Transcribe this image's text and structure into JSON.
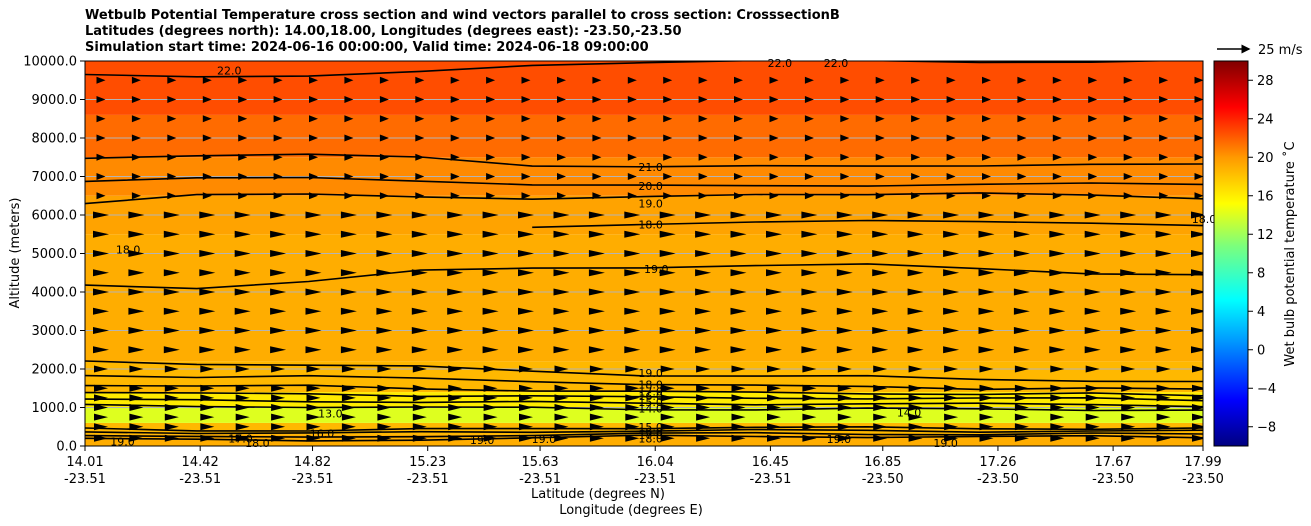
{
  "chart_data": {
    "type": "contour",
    "title_lines": [
      "Wetbulb Potential Temperature cross section and wind vectors parallel to cross section: CrosssectionB",
      "Latitudes (degrees north): 14.00,18.00, Longitudes (degrees east): -23.50,-23.50",
      "Simulation start time: 2024-06-16 00:00:00, Valid time: 2024-06-18 09:00:00"
    ],
    "ylabel": "Altitude (meters)",
    "xlabel_lat": "Latitude (degrees N)",
    "xlabel_lon": "Longitude (degrees E)",
    "ylim": [
      0,
      10000
    ],
    "yticks": [
      "0.0",
      "1000.0",
      "2000.0",
      "3000.0",
      "4000.0",
      "5000.0",
      "6000.0",
      "7000.0",
      "8000.0",
      "9000.0",
      "10000.0"
    ],
    "xticks": [
      {
        "lat": "14.01",
        "lon": "-23.51"
      },
      {
        "lat": "14.42",
        "lon": "-23.51"
      },
      {
        "lat": "14.82",
        "lon": "-23.51"
      },
      {
        "lat": "15.23",
        "lon": "-23.51"
      },
      {
        "lat": "15.63",
        "lon": "-23.51"
      },
      {
        "lat": "16.04",
        "lon": "-23.51"
      },
      {
        "lat": "16.45",
        "lon": "-23.51"
      },
      {
        "lat": "16.85",
        "lon": "-23.50"
      },
      {
        "lat": "17.26",
        "lon": "-23.50"
      },
      {
        "lat": "17.67",
        "lon": "-23.50"
      },
      {
        "lat": "17.99",
        "lon": "-23.50"
      }
    ],
    "xlim": [
      14.01,
      17.99
    ],
    "colorbar": {
      "label": "Wet bulb potential temperature ˚C",
      "range": [
        -10,
        30
      ],
      "ticks": [
        "28",
        "24",
        "20",
        "16",
        "12",
        "8",
        "4",
        "0",
        "−4",
        "−8"
      ],
      "tick_values": [
        28,
        24,
        20,
        16,
        12,
        8,
        4,
        0,
        -4,
        -8
      ],
      "colors": {
        "min": "#000080",
        "cool": "#0055ff",
        "mid": "#00ffff",
        "green": "#7cff7c",
        "yellow": "#ffff00",
        "orange": "#ff9900",
        "red": "#ff0000",
        "max": "#800000"
      }
    },
    "quiver_key": "25 m/s",
    "field_bands": [
      {
        "from": 0,
        "to": 300,
        "value": 19
      },
      {
        "from": 300,
        "to": 600,
        "value": 18.5
      },
      {
        "from": 600,
        "to": 1000,
        "value": 14
      },
      {
        "from": 1000,
        "to": 1400,
        "value": 16
      },
      {
        "from": 1400,
        "to": 2200,
        "value": 18.5
      },
      {
        "from": 2200,
        "to": 5500,
        "value": 19
      },
      {
        "from": 5500,
        "to": 6500,
        "value": 19.5
      },
      {
        "from": 6500,
        "to": 7500,
        "value": 20.5
      },
      {
        "from": 7500,
        "to": 8600,
        "value": 21.5
      },
      {
        "from": 8600,
        "to": 10000,
        "value": 22.5
      }
    ],
    "contours": [
      {
        "level": "22.0",
        "alt": [
          9650,
          9620,
          9600,
          9700,
          9900,
          9980,
          9990,
          9995,
          9990,
          9980,
          10000
        ]
      },
      {
        "level": "21.0",
        "alt": [
          7500,
          7550,
          7550,
          7500,
          7300,
          7250,
          7250,
          7280,
          7300,
          7300,
          7300
        ]
      },
      {
        "level": "20.0",
        "alt": [
          6900,
          6950,
          6950,
          6900,
          6800,
          6750,
          6750,
          6780,
          6800,
          6800,
          6800
        ]
      },
      {
        "level": "19.0",
        "alt": [
          6300,
          6500,
          6550,
          6500,
          6400,
          6450,
          6550,
          6550,
          6550,
          6500,
          6450
        ]
      },
      {
        "level": "18.0",
        "alt": [
          null,
          null,
          null,
          null,
          5650,
          5750,
          5850,
          5850,
          5800,
          5800,
          5750
        ]
      },
      {
        "level": "19.0",
        "alt": [
          4150,
          4100,
          4300,
          4550,
          4600,
          4650,
          4700,
          4700,
          4600,
          4500,
          4450
        ]
      },
      {
        "level": "19.0",
        "alt": [
          2200,
          2150,
          2100,
          2050,
          1950,
          1850,
          1800,
          1800,
          1750,
          1700,
          1650
        ]
      },
      {
        "level": "18.0",
        "alt": [
          1850,
          1800,
          1800,
          1750,
          1700,
          1600,
          1550,
          1550,
          1500,
          1500,
          1450
        ]
      },
      {
        "level": "17.0",
        "alt": [
          1600,
          1550,
          1550,
          1500,
          1450,
          1400,
          1380,
          1380,
          1350,
          1350,
          1300
        ]
      },
      {
        "level": "16.0",
        "alt": [
          1400,
          1350,
          1350,
          1320,
          1300,
          1250,
          1250,
          1250,
          1230,
          1230,
          1200
        ]
      },
      {
        "level": "15.0",
        "alt": [
          1200,
          1180,
          1170,
          1150,
          1130,
          1100,
          1100,
          1100,
          1080,
          1080,
          1050
        ]
      },
      {
        "level": "14.0",
        "alt": [
          1050,
          1030,
          1030,
          1000,
          980,
          960,
          960,
          960,
          950,
          950,
          940
        ]
      },
      {
        "level": "15.0",
        "alt": [
          450,
          420,
          400,
          420,
          450,
          480,
          480,
          470,
          460,
          460,
          450
        ]
      },
      {
        "level": "16.0",
        "alt": [
          380,
          350,
          320,
          350,
          380,
          400,
          400,
          400,
          390,
          390,
          380
        ]
      },
      {
        "level": "17.0",
        "alt": [
          300,
          250,
          200,
          250,
          300,
          320,
          320,
          320,
          310,
          310,
          300
        ]
      },
      {
        "level": "18.0",
        "alt": [
          220,
          150,
          120,
          180,
          220,
          250,
          250,
          250,
          240,
          240,
          230
        ]
      }
    ],
    "contour_labels": [
      {
        "text": "22.0",
        "lat": 14.48,
        "alt": 9750
      },
      {
        "text": "22.0",
        "lat": 16.44,
        "alt": 9950
      },
      {
        "text": "22.0",
        "lat": 16.64,
        "alt": 9950
      },
      {
        "text": "21.0",
        "lat": 15.98,
        "alt": 7250
      },
      {
        "text": "20.0",
        "lat": 15.98,
        "alt": 6750
      },
      {
        "text": "19.0",
        "lat": 15.98,
        "alt": 6300
      },
      {
        "text": "18.0",
        "lat": 15.98,
        "alt": 5750
      },
      {
        "text": "19.0",
        "lat": 16.0,
        "alt": 4600
      },
      {
        "text": "19.0",
        "lat": 15.98,
        "alt": 1900
      },
      {
        "text": "18.0",
        "lat": 15.98,
        "alt": 1600
      },
      {
        "text": "17.0",
        "lat": 15.98,
        "alt": 1420
      },
      {
        "text": "16.0",
        "lat": 15.98,
        "alt": 1300
      },
      {
        "text": "15.0",
        "lat": 15.98,
        "alt": 1140
      },
      {
        "text": "14.0",
        "lat": 15.98,
        "alt": 980
      },
      {
        "text": "15.0",
        "lat": 15.98,
        "alt": 500
      },
      {
        "text": "16.0",
        "lat": 15.98,
        "alt": 380
      },
      {
        "text": "17.0",
        "lat": 15.98,
        "alt": 280
      },
      {
        "text": "18.0",
        "lat": 15.98,
        "alt": 200
      },
      {
        "text": "19.0",
        "lat": 14.1,
        "alt": 120
      },
      {
        "text": "17.0",
        "lat": 14.52,
        "alt": 200
      },
      {
        "text": "18.0",
        "lat": 14.58,
        "alt": 80
      },
      {
        "text": "16.0",
        "lat": 14.81,
        "alt": 330
      },
      {
        "text": "19.0",
        "lat": 15.38,
        "alt": 160
      },
      {
        "text": "19.0",
        "lat": 15.6,
        "alt": 180
      },
      {
        "text": "19.0",
        "lat": 16.65,
        "alt": 180
      },
      {
        "text": "19.0",
        "lat": 17.03,
        "alt": 80
      },
      {
        "text": "14.0",
        "lat": 16.9,
        "alt": 870
      },
      {
        "text": "13.0",
        "lat": 14.84,
        "alt": 850
      },
      {
        "text": "18.0",
        "lat": 14.12,
        "alt": 5100
      },
      {
        "text": "18.0",
        "lat": 17.95,
        "alt": 5900
      }
    ],
    "wind": {
      "columns": 32,
      "levels": [
        200,
        500,
        750,
        1000,
        1250,
        1500,
        2000,
        2500,
        3000,
        3500,
        4000,
        4500,
        5000,
        5500,
        6000,
        6500,
        7000,
        7500,
        8000,
        8500,
        9000,
        9500
      ]
    }
  }
}
